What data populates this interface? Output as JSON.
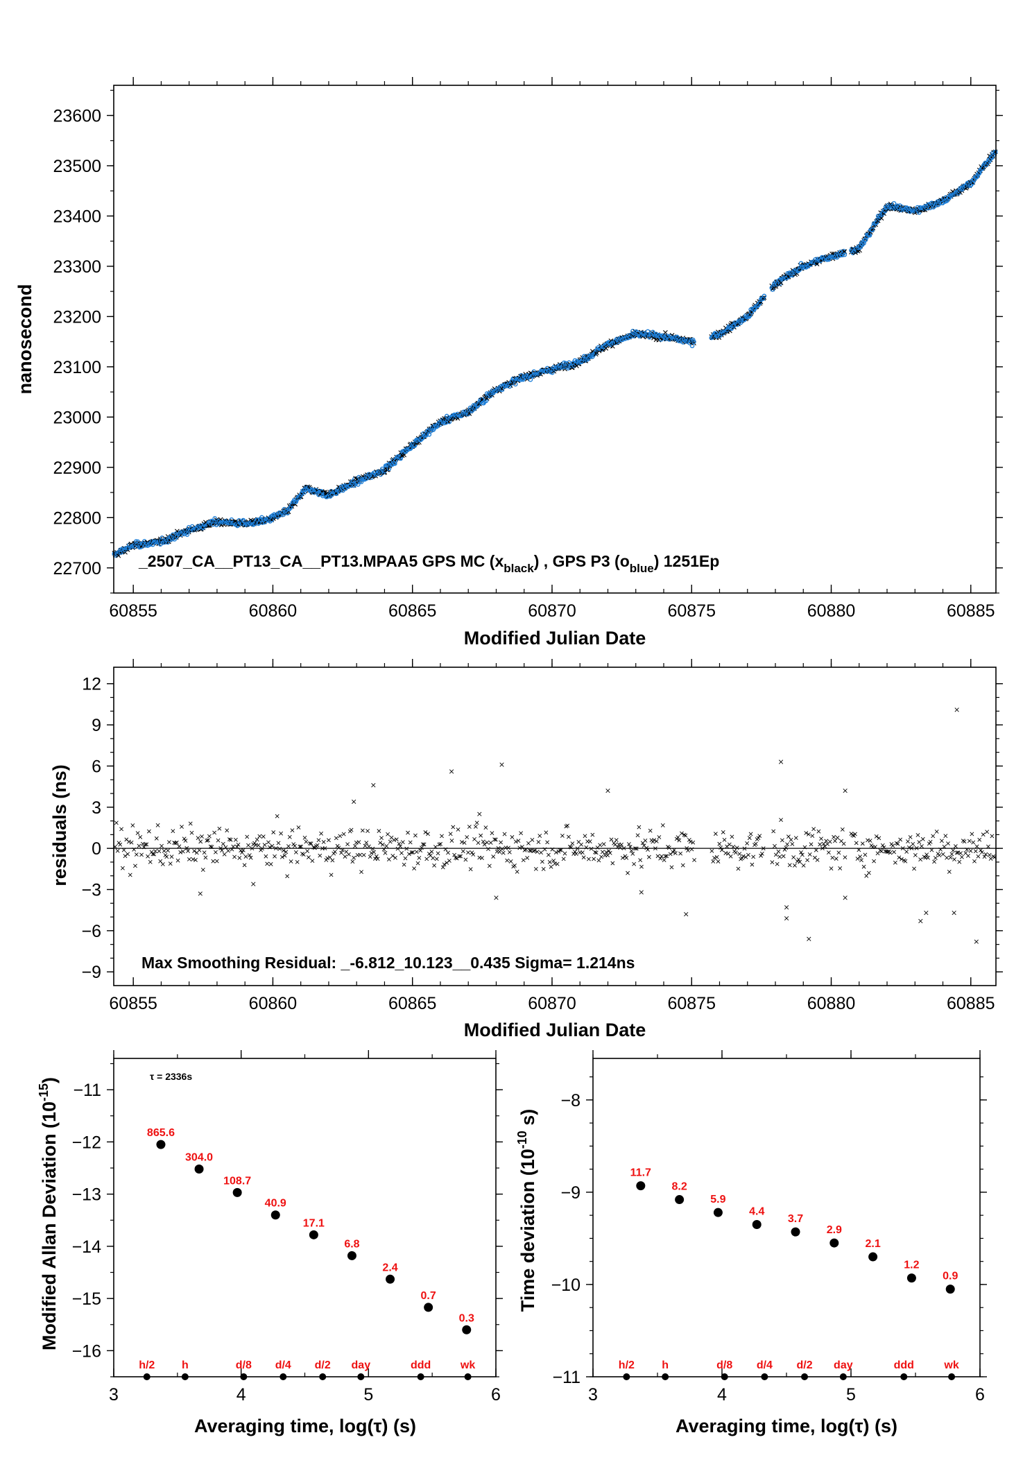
{
  "chart_data": [
    {
      "type": "scatter",
      "xlabel": "Modified Julian Date",
      "ylabel": "nanosecond",
      "xlim": [
        60854.3,
        60885.9
      ],
      "ylim": [
        22650,
        23660
      ],
      "xticks": [
        60855,
        60860,
        60865,
        60870,
        60875,
        60880,
        60885
      ],
      "yticks": [
        22700,
        22800,
        22900,
        23000,
        23100,
        23200,
        23300,
        23400,
        23500,
        23600
      ],
      "annotation_parts": [
        "_2507_CA__PT13_CA__PT13.MPAA5     GPS MC (x",
        "black",
        ") ,  GPS P3 (o",
        "blue",
        ")  1251Ep"
      ],
      "series": [
        {
          "marker": "x",
          "color": "#000000",
          "trend": [
            [
              60854.3,
              22725
            ],
            [
              60855.0,
              22745
            ],
            [
              60856.0,
              22752
            ],
            [
              60857.0,
              22775
            ],
            [
              60858.0,
              22792
            ],
            [
              60859.0,
              22788
            ],
            [
              60859.8,
              22795
            ],
            [
              60860.5,
              22812
            ],
            [
              60861.2,
              22858
            ],
            [
              60862.0,
              22845
            ],
            [
              60863.0,
              22872
            ],
            [
              60864.0,
              22895
            ],
            [
              60865.0,
              22945
            ],
            [
              60866.0,
              22990
            ],
            [
              60867.0,
              23010
            ],
            [
              60868.0,
              23055
            ],
            [
              60869.0,
              23080
            ],
            [
              60870.0,
              23095
            ],
            [
              60871.0,
              23110
            ],
            [
              60872.0,
              23145
            ],
            [
              60873.0,
              23165
            ],
            [
              60874.0,
              23160
            ],
            [
              60875.0,
              23150
            ],
            [
              60876.0,
              23165
            ],
            [
              60877.0,
              23200
            ],
            [
              60878.0,
              23265
            ],
            [
              60879.0,
              23300
            ],
            [
              60880.0,
              23320
            ],
            [
              60881.0,
              23335
            ],
            [
              60882.0,
              23420
            ],
            [
              60883.0,
              23410
            ],
            [
              60884.0,
              23430
            ],
            [
              60885.0,
              23465
            ],
            [
              60885.9,
              23530
            ]
          ]
        },
        {
          "marker": "o",
          "color": "#1e7fd8"
        }
      ]
    },
    {
      "type": "scatter",
      "xlabel": "Modified Julian Date",
      "ylabel": "residuals (ns)",
      "xlim": [
        60854.3,
        60885.9
      ],
      "ylim": [
        -10.0,
        13.2
      ],
      "xticks": [
        60855,
        60860,
        60865,
        60870,
        60875,
        60880,
        60885
      ],
      "yticks": [
        -9,
        -6,
        -3,
        0,
        3,
        6,
        9,
        12
      ],
      "sigma": 1.214,
      "outliers": [
        [
          60857.4,
          -3.3
        ],
        [
          60859.3,
          -2.6
        ],
        [
          60862.9,
          3.4
        ],
        [
          60863.6,
          4.6
        ],
        [
          60866.4,
          5.6
        ],
        [
          60867.4,
          2.5
        ],
        [
          60868.0,
          -3.6
        ],
        [
          60868.2,
          6.1
        ],
        [
          60872.0,
          4.2
        ],
        [
          60873.2,
          -3.2
        ],
        [
          60874.8,
          -4.8
        ],
        [
          60878.2,
          6.3
        ],
        [
          60878.4,
          -4.3
        ],
        [
          60878.4,
          -5.1
        ],
        [
          60879.2,
          -6.6
        ],
        [
          60880.5,
          4.2
        ],
        [
          60880.5,
          -3.6
        ],
        [
          60883.2,
          -5.3
        ],
        [
          60883.4,
          -4.7
        ],
        [
          60884.4,
          -4.7
        ],
        [
          60884.5,
          10.1
        ],
        [
          60885.2,
          -6.8
        ]
      ],
      "annotation": "Max Smoothing Residual: _-6.812_10.123__0.435  Sigma= 1.214ns"
    },
    {
      "type": "scatter",
      "xlabel": "Averaging time, log(τ) (s)",
      "ylabel_main": "Modified Allan Deviation (10",
      "ylabel_sup": "-15",
      "ylabel_end": ")",
      "xlim": [
        3,
        6
      ],
      "ylim": [
        -16.5,
        -10.4
      ],
      "xticks": [
        3,
        4,
        5,
        6
      ],
      "yticks": [
        -16,
        -15,
        -14,
        -13,
        -12,
        -11
      ],
      "tau_label": "τ = 2336s",
      "points": [
        {
          "x": 3.37,
          "y": -12.05,
          "label": "865.6"
        },
        {
          "x": 3.67,
          "y": -12.52,
          "label": "304.0"
        },
        {
          "x": 3.97,
          "y": -12.97,
          "label": "108.7"
        },
        {
          "x": 4.27,
          "y": -13.4,
          "label": "40.9"
        },
        {
          "x": 4.57,
          "y": -13.78,
          "label": "17.1"
        },
        {
          "x": 4.87,
          "y": -14.18,
          "label": "6.8"
        },
        {
          "x": 5.17,
          "y": -14.63,
          "label": "2.4"
        },
        {
          "x": 5.47,
          "y": -15.17,
          "label": "0.7"
        },
        {
          "x": 5.77,
          "y": -15.6,
          "label": "0.3"
        }
      ],
      "markers": [
        {
          "x": 3.26,
          "label": "h/2"
        },
        {
          "x": 3.56,
          "label": "h"
        },
        {
          "x": 4.02,
          "label": "d/8"
        },
        {
          "x": 4.33,
          "label": "d/4"
        },
        {
          "x": 4.64,
          "label": "d/2"
        },
        {
          "x": 4.94,
          "label": "day"
        },
        {
          "x": 5.41,
          "label": "ddd"
        },
        {
          "x": 5.78,
          "label": "wk"
        }
      ]
    },
    {
      "type": "scatter",
      "xlabel": "Averaging time, log(τ) (s)",
      "ylabel_main": "Time deviation (10",
      "ylabel_sup": "-10",
      "ylabel_end": " s)",
      "xlim": [
        3,
        6
      ],
      "ylim": [
        -11.0,
        -7.55
      ],
      "xticks": [
        3,
        4,
        5,
        6
      ],
      "yticks": [
        -11,
        -10,
        -9,
        -8
      ],
      "points": [
        {
          "x": 3.37,
          "y": -8.93,
          "label": "11.7"
        },
        {
          "x": 3.67,
          "y": -9.08,
          "label": "8.2"
        },
        {
          "x": 3.97,
          "y": -9.22,
          "label": "5.9"
        },
        {
          "x": 4.27,
          "y": -9.35,
          "label": "4.4"
        },
        {
          "x": 4.57,
          "y": -9.43,
          "label": "3.7"
        },
        {
          "x": 4.87,
          "y": -9.55,
          "label": "2.9"
        },
        {
          "x": 5.17,
          "y": -9.7,
          "label": "2.1"
        },
        {
          "x": 5.47,
          "y": -9.93,
          "label": "1.2"
        },
        {
          "x": 5.77,
          "y": -10.05,
          "label": "0.9"
        }
      ],
      "markers": [
        {
          "x": 3.26,
          "label": "h/2"
        },
        {
          "x": 3.56,
          "label": "h"
        },
        {
          "x": 4.02,
          "label": "d/8"
        },
        {
          "x": 4.33,
          "label": "d/4"
        },
        {
          "x": 4.64,
          "label": "d/2"
        },
        {
          "x": 4.94,
          "label": "day"
        },
        {
          "x": 5.41,
          "label": "ddd"
        },
        {
          "x": 5.78,
          "label": "wk"
        }
      ]
    }
  ],
  "colors": {
    "label_red": "#ee1111",
    "marker_blue": "#1e7fd8",
    "black": "#000000"
  }
}
